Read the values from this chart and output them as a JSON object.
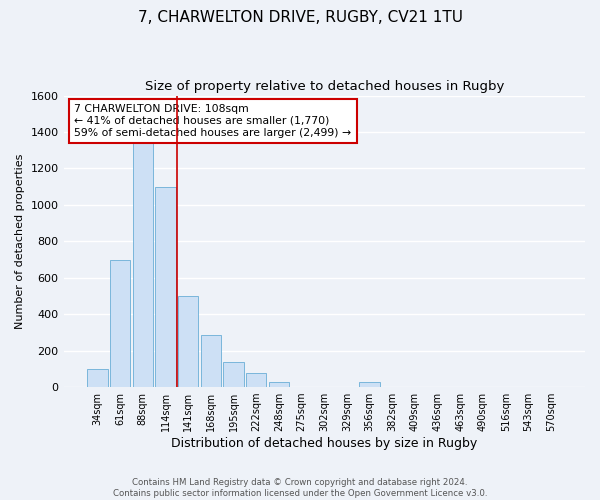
{
  "title": "7, CHARWELTON DRIVE, RUGBY, CV21 1TU",
  "subtitle": "Size of property relative to detached houses in Rugby",
  "xlabel": "Distribution of detached houses by size in Rugby",
  "ylabel": "Number of detached properties",
  "bar_labels": [
    "34sqm",
    "61sqm",
    "88sqm",
    "114sqm",
    "141sqm",
    "168sqm",
    "195sqm",
    "222sqm",
    "248sqm",
    "275sqm",
    "302sqm",
    "329sqm",
    "356sqm",
    "382sqm",
    "409sqm",
    "436sqm",
    "463sqm",
    "490sqm",
    "516sqm",
    "543sqm",
    "570sqm"
  ],
  "bar_values": [
    100,
    700,
    1340,
    1100,
    500,
    285,
    140,
    80,
    30,
    0,
    0,
    0,
    30,
    0,
    0,
    0,
    0,
    0,
    0,
    0,
    0
  ],
  "bar_color": "#cde0f5",
  "bar_edge_color": "#6aaed6",
  "vline_x": 3.5,
  "vline_color": "#cc0000",
  "ylim": [
    0,
    1600
  ],
  "yticks": [
    0,
    200,
    400,
    600,
    800,
    1000,
    1200,
    1400,
    1600
  ],
  "annotation_text": "7 CHARWELTON DRIVE: 108sqm\n← 41% of detached houses are smaller (1,770)\n59% of semi-detached houses are larger (2,499) →",
  "annotation_box_color": "#ffffff",
  "annotation_box_edge": "#cc0000",
  "footer_text": "Contains HM Land Registry data © Crown copyright and database right 2024.\nContains public sector information licensed under the Open Government Licence v3.0.",
  "bg_color": "#eef2f8",
  "grid_color": "#ffffff",
  "title_fontsize": 11,
  "subtitle_fontsize": 9.5,
  "title_fontweight": "normal"
}
